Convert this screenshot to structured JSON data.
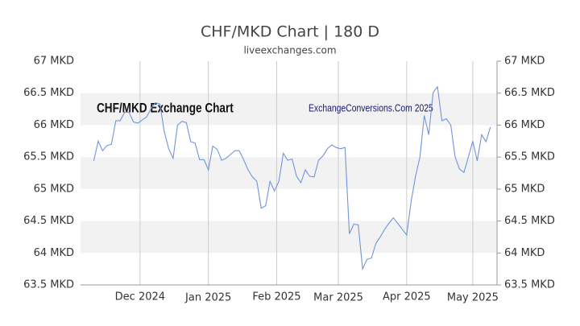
{
  "chart_data": {
    "type": "line",
    "title": "CHF/MKD Chart | 180 D",
    "subtitle": "liveexchanges.com",
    "annotations": [
      "CHF/MKD Exchange Chart",
      "ExchangeConversions.Com 2025"
    ],
    "x": [
      6,
      8,
      10,
      12,
      14,
      16,
      18,
      20,
      22,
      24,
      26,
      28,
      30,
      32,
      34,
      36,
      38,
      40,
      42,
      44,
      46,
      48,
      50,
      52,
      54,
      56,
      58,
      60,
      62,
      64,
      66,
      68,
      70,
      72,
      74,
      76,
      78,
      80,
      82,
      84,
      86,
      88,
      90,
      92,
      94,
      96,
      98,
      100,
      102,
      104,
      106,
      108,
      110,
      112,
      114,
      116,
      118,
      120,
      122,
      124,
      126,
      128,
      130,
      132,
      134,
      136,
      138,
      140,
      142,
      144,
      146,
      148,
      150,
      152,
      154,
      156,
      158,
      160,
      162,
      164,
      166,
      168,
      170,
      172,
      174,
      176,
      178,
      180,
      182,
      184,
      186
    ],
    "series": [
      {
        "name": "CHF/MKD",
        "color": "#6f95dd",
        "values": [
          65.44,
          65.75,
          65.6,
          65.68,
          65.7,
          66.07,
          66.07,
          66.2,
          66.2,
          66.05,
          66.03,
          66.08,
          66.13,
          66.26,
          66.35,
          66.33,
          65.9,
          65.63,
          65.48,
          66.0,
          66.06,
          66.04,
          65.74,
          65.72,
          65.46,
          65.46,
          65.3,
          65.67,
          65.62,
          65.45,
          65.48,
          65.54,
          65.6,
          65.6,
          65.46,
          65.3,
          65.19,
          65.12,
          64.7,
          64.74,
          65.12,
          64.97,
          65.12,
          65.56,
          65.45,
          65.47,
          65.2,
          65.1,
          65.3,
          65.2,
          65.19,
          65.45,
          65.52,
          65.63,
          65.69,
          65.65,
          65.63,
          65.65,
          64.3,
          64.45,
          64.44,
          63.75,
          63.9,
          63.92,
          64.15,
          64.25,
          64.37,
          64.47,
          64.55,
          64.46,
          64.37,
          64.28,
          64.8,
          65.2,
          65.5,
          66.15,
          65.85,
          66.51,
          66.6,
          66.07,
          66.1,
          66.0,
          65.5,
          65.31,
          65.26,
          65.5,
          65.75,
          65.44,
          65.85,
          65.74,
          65.97
        ]
      }
    ],
    "xlim": [
      0,
      189
    ],
    "xticks": [
      {
        "value": 27,
        "label": "Dec 2024"
      },
      {
        "value": 58,
        "label": "Jan 2025"
      },
      {
        "value": 89,
        "label": "Feb 2025"
      },
      {
        "value": 117,
        "label": "Mar 2025"
      },
      {
        "value": 148,
        "label": "Apr 2025"
      },
      {
        "value": 178,
        "label": "May 2025"
      }
    ],
    "ylim": [
      63.5,
      67
    ],
    "yticks": [
      {
        "value": 63.5,
        "label": "63.5 MKD"
      },
      {
        "value": 64,
        "label": "64 MKD"
      },
      {
        "value": 64.5,
        "label": "64.5 MKD"
      },
      {
        "value": 65,
        "label": "65 MKD"
      },
      {
        "value": 65.5,
        "label": "65.5 MKD"
      },
      {
        "value": 66,
        "label": "66 MKD"
      },
      {
        "value": 66.5,
        "label": "66.5 MKD"
      },
      {
        "value": 67,
        "label": "67 MKD"
      }
    ],
    "grid": true
  }
}
